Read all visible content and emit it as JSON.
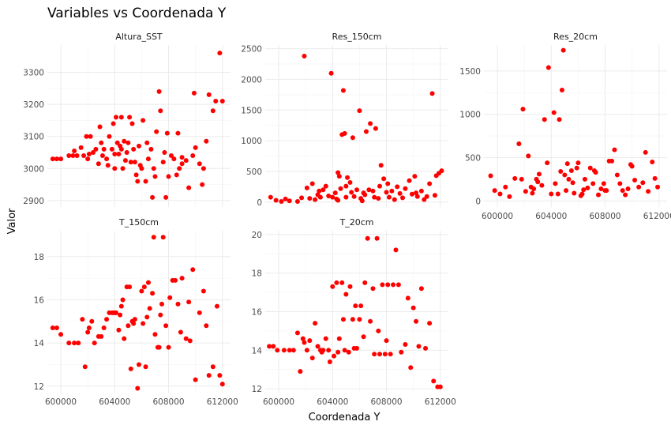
{
  "chart_data": {
    "type": "scatter",
    "title": "Variables vs Coordenada Y",
    "xlabel": "Coordenada Y",
    "ylabel": "Valor",
    "point_color": "#ff0000",
    "x_range": [
      599000,
      612600
    ],
    "x_ticks": [
      600000,
      604000,
      608000,
      612000
    ],
    "x_tick_labels": [
      "600000",
      "604000",
      "608000",
      "612000"
    ],
    "grid": true,
    "panels": [
      {
        "name": "Altura_SST",
        "ylim": [
          2880,
          3385
        ],
        "y_ticks": [
          2900,
          3000,
          3100,
          3200,
          3300
        ],
        "y_tick_labels": [
          "2900",
          "3000",
          "3100",
          "3200",
          "3300"
        ],
        "x": [
          599400,
          599700,
          600000,
          600600,
          600900,
          601200,
          601500,
          601700,
          601900,
          602000,
          602100,
          602200,
          602400,
          602600,
          602900,
          603100,
          603200,
          603400,
          603500,
          603600,
          603800,
          603900,
          604000,
          604100,
          604200,
          604300,
          604400,
          604500,
          604500,
          604600,
          604700,
          604800,
          604900,
          605000,
          605100,
          605200,
          605300,
          605400,
          605600,
          605700,
          605800,
          605900,
          606100,
          606300,
          606400,
          606500,
          606700,
          606800,
          606900,
          607100,
          607300,
          607400,
          607600,
          607700,
          607800,
          607900,
          608200,
          608400,
          608600,
          608700,
          608800,
          609000,
          609300,
          609500,
          609800,
          609900,
          610000,
          610300,
          610600,
          610800,
          611000,
          611300,
          611500,
          611800,
          612000,
          601000,
          603000,
          605500,
          606000,
          607000,
          602800,
          604000,
          608000,
          609000,
          610500
        ],
        "y": [
          3030,
          3030,
          3030,
          3040,
          3040,
          3040,
          3065,
          3040,
          3100,
          3030,
          3045,
          3100,
          3050,
          3060,
          3130,
          3040,
          3060,
          3030,
          3010,
          3100,
          3060,
          3140,
          3000,
          3160,
          3080,
          3045,
          3070,
          3060,
          3160,
          3000,
          3085,
          3025,
          3050,
          3080,
          3160,
          3020,
          3140,
          3060,
          2980,
          2960,
          3070,
          3010,
          3150,
          2960,
          3080,
          3030,
          3060,
          2910,
          3000,
          3115,
          3240,
          3180,
          3020,
          3050,
          2910,
          3110,
          3040,
          3030,
          2980,
          3110,
          3000,
          3015,
          3025,
          2940,
          3040,
          3235,
          3065,
          3015,
          3000,
          3085,
          3230,
          3180,
          3210,
          3360,
          3210,
          3055,
          3080,
          3020,
          3000,
          2975,
          3015,
          3045,
          2975,
          3035,
          2950
        ]
      },
      {
        "name": "Res_150cm",
        "ylim": [
          -80,
          2560
        ],
        "y_ticks": [
          0,
          500,
          1000,
          1500,
          2000,
          2500
        ],
        "y_tick_labels": [
          "0",
          "500",
          "1000",
          "1500",
          "2000",
          "2500"
        ],
        "x": [
          599400,
          599800,
          600200,
          600800,
          601400,
          601700,
          601900,
          602100,
          602300,
          602500,
          602700,
          602900,
          603100,
          603300,
          603500,
          603700,
          603900,
          604000,
          604200,
          604300,
          604400,
          604500,
          604600,
          604700,
          604800,
          604900,
          605000,
          605100,
          605300,
          605400,
          605500,
          605600,
          605800,
          606000,
          606100,
          606200,
          606300,
          606500,
          606700,
          606800,
          607000,
          607100,
          607200,
          607400,
          607600,
          607800,
          608000,
          608200,
          608400,
          608600,
          608800,
          609000,
          609200,
          609400,
          609700,
          609900,
          610100,
          610300,
          610600,
          610800,
          611000,
          611200,
          611400,
          611700,
          611900,
          612100,
          603000,
          605000,
          606400,
          608100,
          610200,
          604400,
          607500,
          600500,
          611600
        ],
        "y": [
          80,
          30,
          10,
          20,
          10,
          70,
          2380,
          230,
          60,
          300,
          40,
          120,
          80,
          200,
          260,
          100,
          2100,
          80,
          150,
          50,
          480,
          420,
          220,
          1100,
          1820,
          1120,
          80,
          400,
          320,
          160,
          1050,
          90,
          200,
          1490,
          60,
          20,
          150,
          1150,
          200,
          1280,
          180,
          80,
          1200,
          60,
          600,
          380,
          160,
          80,
          180,
          40,
          250,
          140,
          70,
          220,
          350,
          130,
          420,
          90,
          180,
          40,
          90,
          300,
          1770,
          430,
          470,
          510,
          180,
          260,
          120,
          300,
          150,
          30,
          260,
          50,
          110
        ]
      },
      {
        "name": "Res_20cm",
        "ylim": [
          -70,
          1800
        ],
        "y_ticks": [
          0,
          500,
          1000,
          1500
        ],
        "y_tick_labels": [
          "0",
          "500",
          "1000",
          "1500"
        ],
        "x": [
          599500,
          599800,
          600200,
          600900,
          601300,
          601600,
          601800,
          601900,
          602100,
          602300,
          602500,
          602700,
          602900,
          603100,
          603300,
          603500,
          603700,
          603800,
          604000,
          604200,
          604300,
          604500,
          604600,
          604800,
          604900,
          605000,
          605100,
          605200,
          605300,
          605500,
          605700,
          605900,
          606000,
          606200,
          606400,
          606500,
          606700,
          606900,
          607100,
          607300,
          607500,
          607700,
          607900,
          608100,
          608300,
          608500,
          608700,
          608900,
          609100,
          609300,
          609500,
          609700,
          609900,
          610200,
          610500,
          610800,
          611000,
          611200,
          611500,
          611700,
          611900,
          603000,
          604700,
          606300,
          608000,
          610000,
          600600,
          602600,
          605600,
          607200
        ],
        "y": [
          290,
          120,
          80,
          50,
          260,
          660,
          250,
          1060,
          110,
          520,
          160,
          140,
          250,
          310,
          180,
          940,
          440,
          1540,
          80,
          1020,
          200,
          80,
          940,
          1280,
          1740,
          300,
          120,
          430,
          250,
          350,
          90,
          380,
          440,
          60,
          130,
          250,
          150,
          380,
          200,
          330,
          70,
          140,
          200,
          120,
          460,
          460,
          590,
          300,
          200,
          120,
          70,
          140,
          420,
          240,
          160,
          210,
          560,
          110,
          450,
          260,
          160,
          220,
          340,
          80,
          120,
          400,
          160,
          90,
          210,
          350
        ]
      },
      {
        "name": "T_150cm",
        "ylim": [
          11.7,
          19.2
        ],
        "y_ticks": [
          12,
          14,
          16,
          18
        ],
        "y_tick_labels": [
          "12",
          "14",
          "16",
          "18"
        ],
        "x": [
          599400,
          599700,
          600000,
          600600,
          601000,
          601300,
          601600,
          601800,
          602000,
          602100,
          602300,
          602500,
          602800,
          603000,
          603200,
          603400,
          603600,
          603800,
          603900,
          604000,
          604100,
          604300,
          604400,
          604500,
          604600,
          604700,
          604900,
          605000,
          605100,
          605300,
          605400,
          605500,
          605700,
          605800,
          606000,
          606100,
          606200,
          606400,
          606500,
          606600,
          606800,
          606900,
          607000,
          607200,
          607400,
          607500,
          607600,
          607800,
          608000,
          608100,
          608300,
          608500,
          608700,
          608900,
          609000,
          609300,
          609500,
          609800,
          610000,
          610300,
          610600,
          610800,
          611000,
          611300,
          611600,
          611800,
          612000,
          605200,
          606300,
          607300,
          609600
        ],
        "y": [
          14.7,
          14.7,
          14.4,
          14.0,
          14.0,
          14.0,
          15.1,
          12.9,
          14.5,
          14.7,
          15.0,
          14.0,
          14.3,
          14.3,
          14.7,
          15.1,
          15.4,
          15.4,
          15.4,
          15.4,
          15.4,
          14.6,
          15.3,
          15.7,
          16.0,
          14.2,
          16.6,
          14.8,
          16.6,
          15.0,
          14.9,
          15.1,
          11.9,
          13.0,
          16.4,
          14.9,
          16.6,
          15.2,
          16.8,
          15.6,
          16.3,
          18.9,
          14.4,
          13.8,
          15.3,
          15.8,
          18.9,
          14.8,
          13.8,
          16.1,
          16.9,
          16.9,
          15.8,
          14.5,
          17.0,
          14.2,
          15.9,
          17.4,
          12.3,
          15.4,
          16.4,
          14.8,
          12.5,
          12.9,
          15.7,
          12.5,
          12.1,
          12.8,
          12.9,
          13.8,
          14.1
        ]
      },
      {
        "name": "T_20cm",
        "ylim": [
          11.8,
          20.2
        ],
        "y_ticks": [
          12,
          14,
          16,
          18,
          20
        ],
        "y_tick_labels": [
          "12",
          "14",
          "16",
          "18",
          "20"
        ],
        "x": [
          599300,
          599600,
          599900,
          600400,
          600800,
          601100,
          601400,
          601600,
          601800,
          601900,
          602100,
          602300,
          602500,
          602700,
          602900,
          603100,
          603300,
          603500,
          603700,
          603800,
          604000,
          604100,
          604300,
          604400,
          604500,
          604700,
          604800,
          604900,
          605000,
          605200,
          605300,
          605500,
          605700,
          605800,
          606000,
          606100,
          606300,
          606400,
          606600,
          606800,
          607000,
          607100,
          607300,
          607500,
          607700,
          607900,
          608100,
          608300,
          608500,
          608700,
          608900,
          609100,
          609400,
          609600,
          609800,
          610000,
          610200,
          610600,
          610900,
          611200,
          611500,
          611800,
          612000,
          603200,
          605600,
          607400,
          608000,
          610400
        ],
        "y": [
          14.2,
          14.2,
          14.0,
          14.0,
          14.0,
          14.0,
          14.9,
          12.9,
          14.6,
          14.4,
          14.0,
          14.5,
          13.6,
          15.4,
          14.2,
          14.0,
          14.0,
          14.6,
          14.0,
          13.4,
          17.3,
          13.7,
          17.5,
          13.9,
          14.6,
          17.5,
          15.6,
          14.0,
          16.9,
          13.9,
          17.3,
          15.6,
          16.3,
          14.1,
          15.6,
          16.3,
          14.7,
          17.5,
          19.8,
          15.5,
          17.2,
          13.8,
          19.8,
          13.8,
          17.4,
          13.8,
          17.4,
          13.8,
          17.4,
          19.2,
          17.4,
          13.9,
          14.3,
          16.7,
          13.1,
          16.2,
          15.5,
          17.2,
          14.1,
          15.4,
          12.4,
          12.1,
          12.1,
          13.9,
          14.1,
          15.0,
          14.5,
          14.2
        ]
      }
    ]
  }
}
